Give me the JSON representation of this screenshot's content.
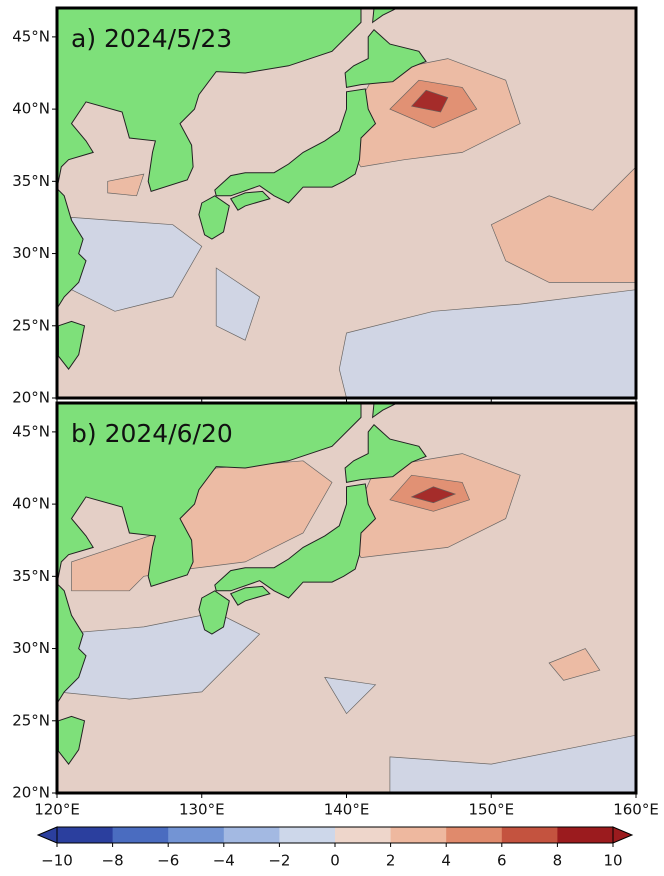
{
  "panels": [
    {
      "label": "a) 2024/5/23"
    },
    {
      "label": "b) 2024/6/20"
    }
  ],
  "map": {
    "lonlim": [
      120,
      160
    ],
    "latlim": [
      20,
      47
    ],
    "lat_ticks": [
      {
        "value": 45,
        "label": "45°N"
      },
      {
        "value": 40,
        "label": "40°N"
      },
      {
        "value": 35,
        "label": "35°N"
      },
      {
        "value": 30,
        "label": "30°N"
      },
      {
        "value": 25,
        "label": "25°N"
      },
      {
        "value": 20,
        "label": "20°N"
      }
    ],
    "lon_ticks": [
      {
        "value": 120,
        "label": "120°E"
      },
      {
        "value": 130,
        "label": "130°E"
      },
      {
        "value": 140,
        "label": "140°E"
      },
      {
        "value": 150,
        "label": "150°E"
      },
      {
        "value": 160,
        "label": "160°E"
      }
    ]
  },
  "colorbar": {
    "lim": [
      -10,
      10
    ],
    "ticks": [
      {
        "value": -10,
        "label": "−10"
      },
      {
        "value": -8,
        "label": "−8"
      },
      {
        "value": -6,
        "label": "−6"
      },
      {
        "value": -4,
        "label": "−4"
      },
      {
        "value": -2,
        "label": "−2"
      },
      0,
      2,
      4,
      6,
      8,
      10
    ],
    "colors": [
      "#2b3f9e",
      "#4a6cc0",
      "#7394d4",
      "#a3b9e2",
      "#cdd7ea",
      "#eed6cb",
      "#eeb89f",
      "#e08a6c",
      "#c4533f",
      "#9b1b1e"
    ]
  }
}
